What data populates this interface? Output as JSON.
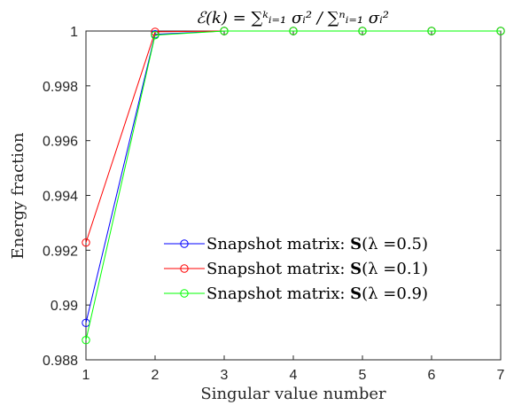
{
  "chart_data": {
    "type": "line",
    "title": "ℰ(k) = ∑ᵏᵢ₌₁ σᵢ² / ∑ⁿᵢ₌₁ σᵢ²",
    "xlabel": "Singular value number",
    "ylabel": "Energy fraction",
    "x": [
      1,
      2,
      3,
      4,
      5,
      6,
      7
    ],
    "xlim": [
      1,
      7
    ],
    "ylim": [
      0.988,
      1.0
    ],
    "xticks": [
      "1",
      "2",
      "3",
      "4",
      "5",
      "6",
      "7"
    ],
    "yticks": [
      "0.988",
      "0.99",
      "0.992",
      "0.994",
      "0.996",
      "0.998",
      "1"
    ],
    "grid": false,
    "legend_position": "lower-right",
    "series": [
      {
        "name": "Snapshot matrix: S(λ =0.5)",
        "legend_prefix": "Snapshot matrix: ",
        "legend_bold": "S",
        "legend_suffix": "(λ =0.5)",
        "color": "#0000ff",
        "values": [
          0.98935,
          0.99988,
          1.0,
          1.0,
          1.0,
          1.0,
          1.0
        ]
      },
      {
        "name": "Snapshot matrix: S(λ =0.1)",
        "legend_prefix": "Snapshot matrix: ",
        "legend_bold": "S",
        "legend_suffix": "(λ =0.1)",
        "color": "#ff0000",
        "values": [
          0.99228,
          0.99997,
          1.0,
          1.0,
          1.0,
          1.0,
          1.0
        ]
      },
      {
        "name": "Snapshot matrix: S(λ =0.9)",
        "legend_prefix": "Snapshot matrix: ",
        "legend_bold": "S",
        "legend_suffix": "(λ =0.9)",
        "color": "#00ff00",
        "values": [
          0.98872,
          0.99985,
          1.0,
          1.0,
          1.0,
          1.0,
          1.0
        ]
      }
    ]
  }
}
